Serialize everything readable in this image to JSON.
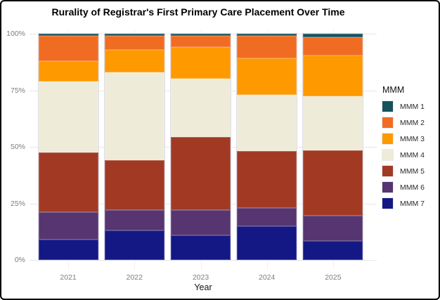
{
  "title": "Rurality of Registrar's First Primary Care Placement Over Time",
  "chart_data": {
    "type": "bar",
    "stacked": true,
    "percent_scale": true,
    "title": "Rurality of Registrar's First Primary Care Placement Over Time",
    "xlabel": "Year",
    "ylabel": "",
    "categories": [
      "2021",
      "2022",
      "2023",
      "2024",
      "2025"
    ],
    "series": [
      {
        "name": "MMM 1",
        "color": "#14535c",
        "values": [
          1,
          1,
          1,
          1,
          1.5
        ]
      },
      {
        "name": "MMM 2",
        "color": "#f16c23",
        "values": [
          11,
          6,
          5,
          10,
          8
        ]
      },
      {
        "name": "MMM 3",
        "color": "#ff9900",
        "values": [
          9,
          10,
          14,
          16,
          18
        ]
      },
      {
        "name": "MMM 4",
        "color": "#efebd9",
        "values": [
          31.5,
          39,
          25.5,
          25,
          24
        ]
      },
      {
        "name": "MMM 5",
        "color": "#a23a23",
        "values": [
          26.5,
          22,
          32.5,
          25,
          29
        ]
      },
      {
        "name": "MMM 6",
        "color": "#563570",
        "values": [
          12,
          9,
          11,
          8,
          11
        ]
      },
      {
        "name": "MMM 7",
        "color": "#141884",
        "values": [
          9,
          13,
          11,
          15,
          8.5
        ]
      }
    ],
    "y_ticks": [
      {
        "label": "0%",
        "value": 0
      },
      {
        "label": "25%",
        "value": 25
      },
      {
        "label": "50%",
        "value": 50
      },
      {
        "label": "75%",
        "value": 75
      },
      {
        "label": "100%",
        "value": 100
      }
    ],
    "ylim": [
      0,
      100
    ],
    "legend_title": "MMM",
    "legend_position": "right",
    "grid": true
  }
}
